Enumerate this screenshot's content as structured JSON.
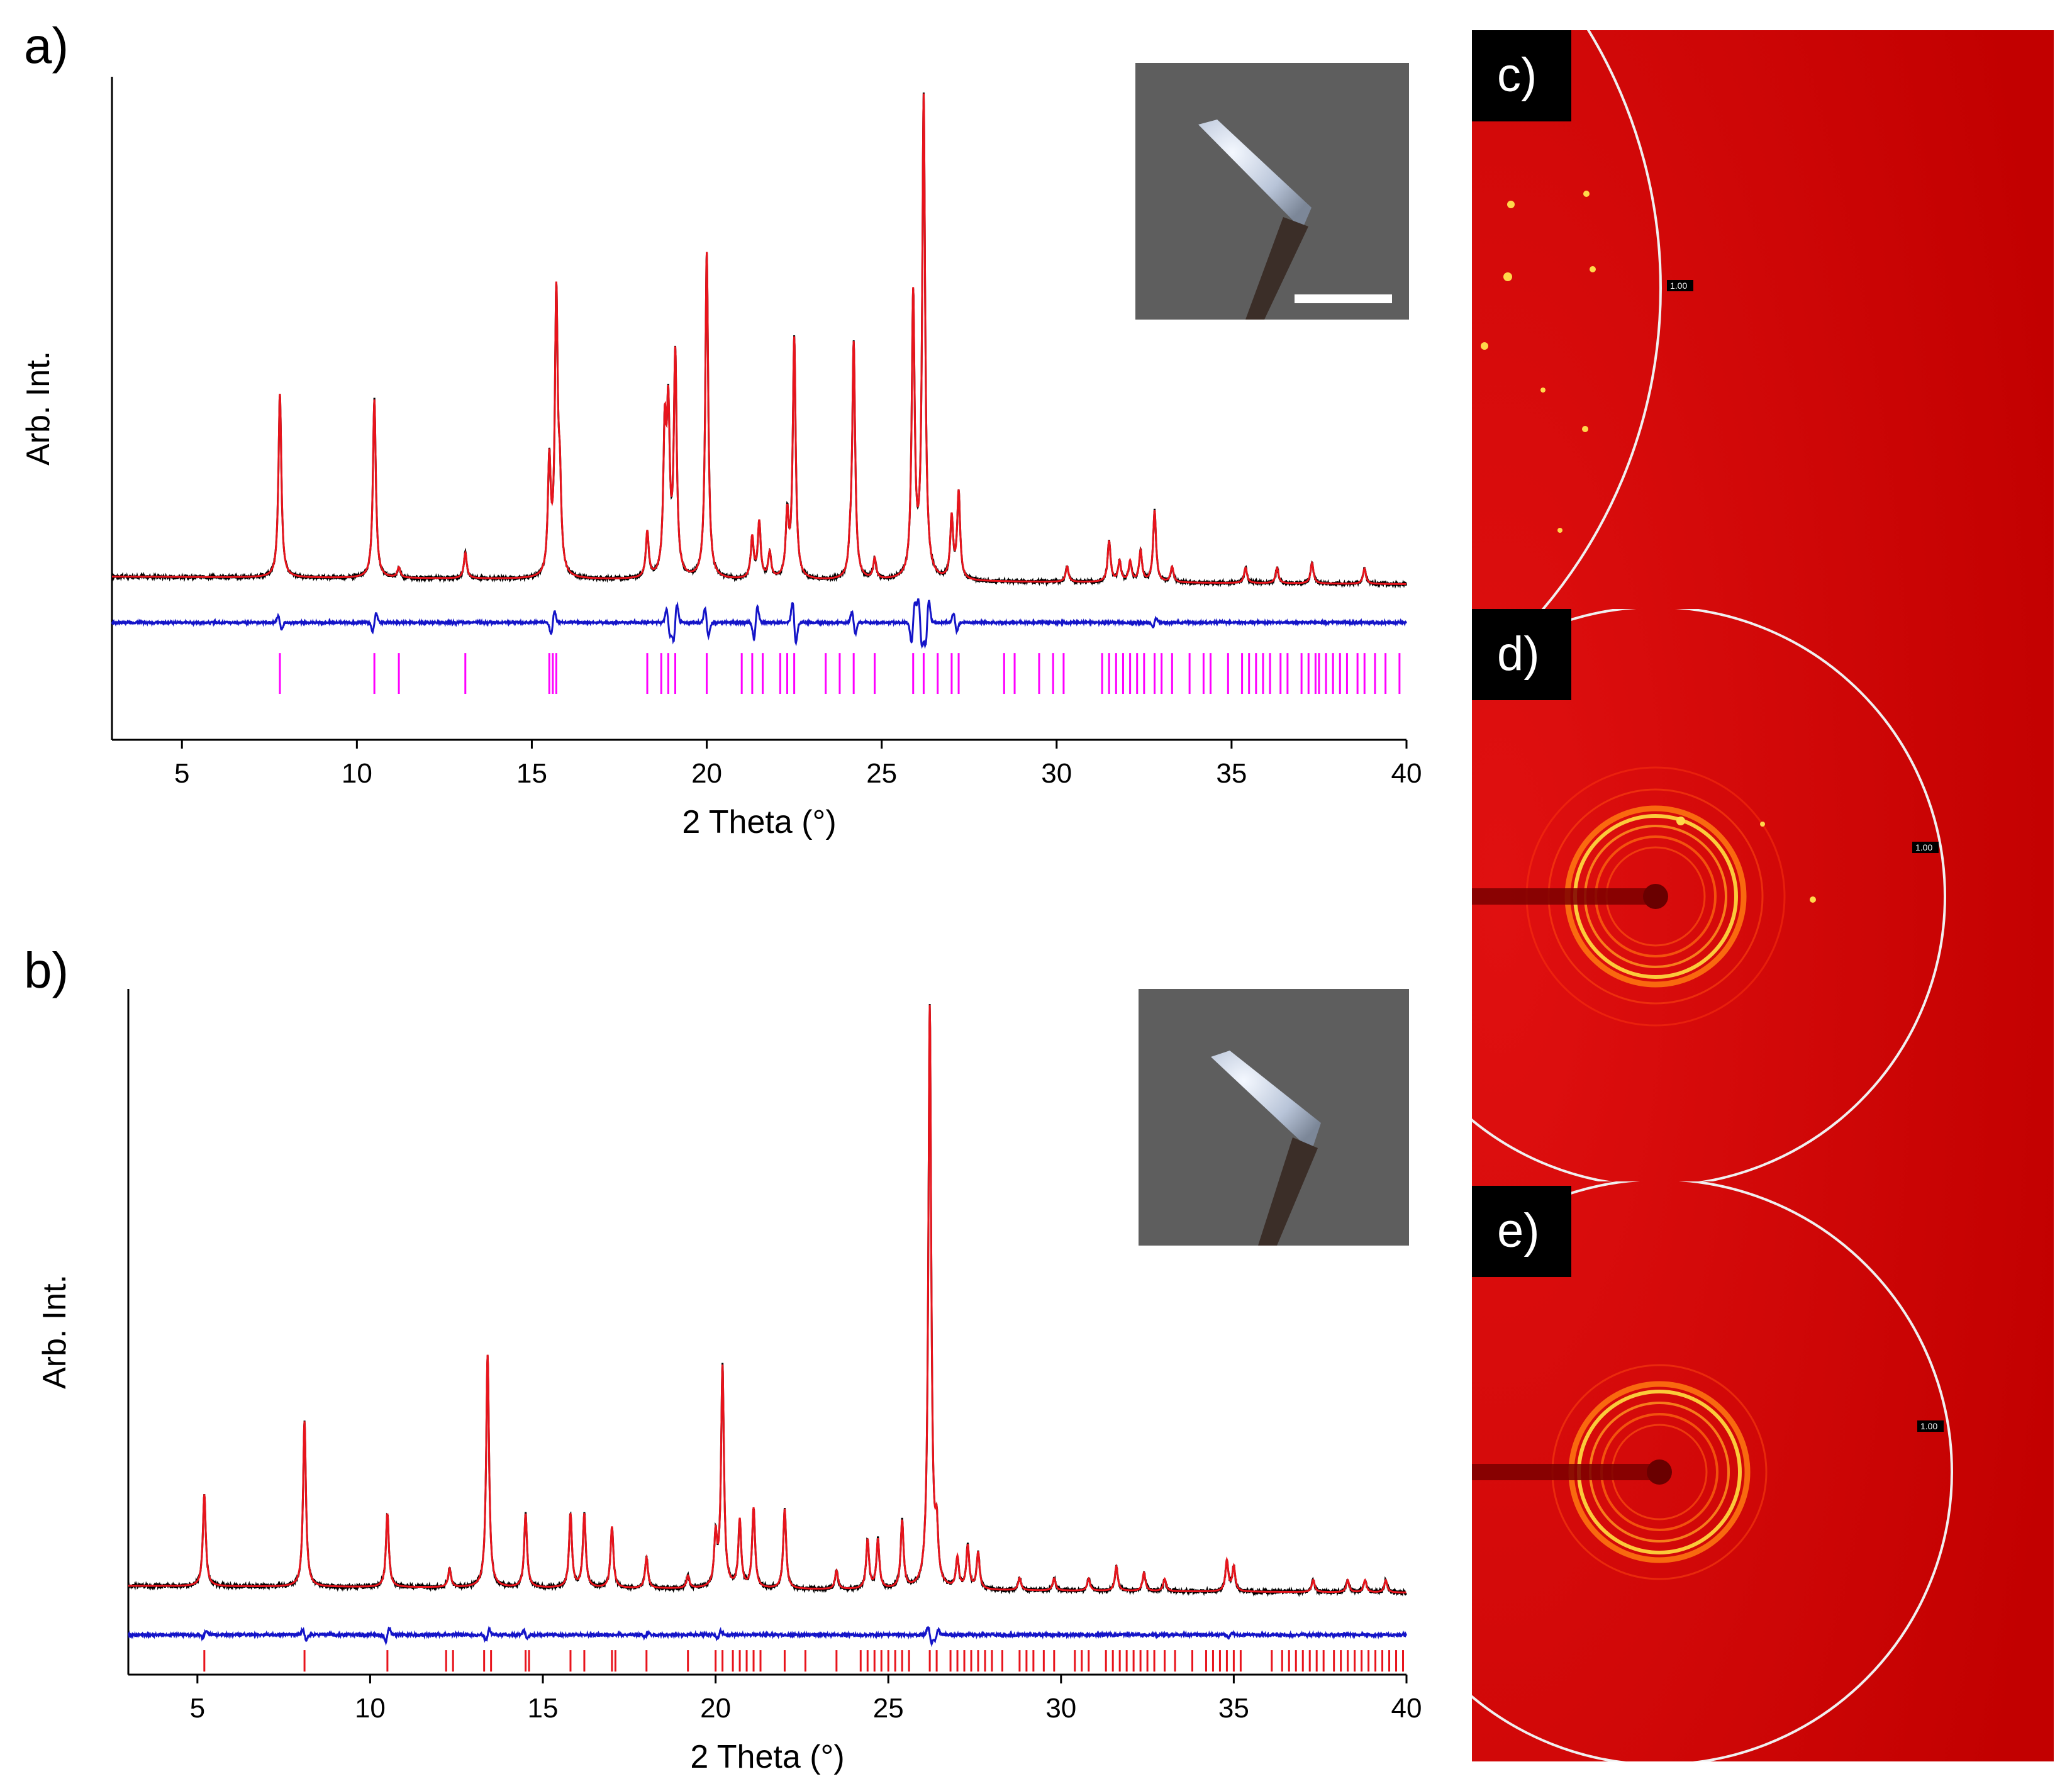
{
  "figure": {
    "labels": {
      "a": "a)",
      "b": "b)",
      "c": "c)",
      "d": "d)",
      "e": "e)"
    },
    "ring_value": "1.00"
  },
  "colors": {
    "observed": "#000000",
    "calculated": "#e8141c",
    "difference": "#1414c8",
    "ticks_a": "#ff00ff",
    "ticks_b": "#e8141c",
    "detector_bg": "#cc0000",
    "photo_bg": "#5e5e5e"
  },
  "chart_data": [
    {
      "panel": "a",
      "type": "line",
      "xlabel": "2 Theta (°)",
      "ylabel": "Arb. Int.",
      "xlim": [
        3,
        40
      ],
      "xticks": [
        5,
        10,
        15,
        20,
        25,
        30,
        35,
        40
      ],
      "ylim": [
        -30,
        100
      ],
      "baseline": 2,
      "background_slope": -0.04,
      "peaks": [
        {
          "x": 7.8,
          "h": 36
        },
        {
          "x": 10.5,
          "h": 35
        },
        {
          "x": 11.2,
          "h": 2
        },
        {
          "x": 13.1,
          "h": 5
        },
        {
          "x": 15.5,
          "h": 22
        },
        {
          "x": 15.7,
          "h": 54
        },
        {
          "x": 15.8,
          "h": 15
        },
        {
          "x": 18.3,
          "h": 9
        },
        {
          "x": 18.8,
          "h": 27
        },
        {
          "x": 18.9,
          "h": 30
        },
        {
          "x": 19.1,
          "h": 43
        },
        {
          "x": 20.0,
          "h": 64
        },
        {
          "x": 21.3,
          "h": 8
        },
        {
          "x": 21.5,
          "h": 11
        },
        {
          "x": 21.8,
          "h": 5
        },
        {
          "x": 22.3,
          "h": 12
        },
        {
          "x": 22.5,
          "h": 47
        },
        {
          "x": 24.1,
          "h": 4
        },
        {
          "x": 24.2,
          "h": 46
        },
        {
          "x": 24.8,
          "h": 4
        },
        {
          "x": 25.9,
          "h": 55
        },
        {
          "x": 26.2,
          "h": 94
        },
        {
          "x": 27.0,
          "h": 12
        },
        {
          "x": 27.2,
          "h": 17
        },
        {
          "x": 30.3,
          "h": 3
        },
        {
          "x": 31.5,
          "h": 8
        },
        {
          "x": 31.8,
          "h": 4
        },
        {
          "x": 32.1,
          "h": 4
        },
        {
          "x": 32.4,
          "h": 6
        },
        {
          "x": 32.8,
          "h": 14
        },
        {
          "x": 33.3,
          "h": 3
        },
        {
          "x": 35.4,
          "h": 3
        },
        {
          "x": 36.3,
          "h": 3
        },
        {
          "x": 37.3,
          "h": 4
        },
        {
          "x": 38.8,
          "h": 3
        }
      ],
      "difference": [
        {
          "x": 7.8,
          "a": -3
        },
        {
          "x": 10.5,
          "a": 4
        },
        {
          "x": 15.6,
          "a": 5
        },
        {
          "x": 18.9,
          "a": -6
        },
        {
          "x": 19.1,
          "a": 8
        },
        {
          "x": 20.0,
          "a": -6
        },
        {
          "x": 21.4,
          "a": 7
        },
        {
          "x": 22.5,
          "a": -9
        },
        {
          "x": 24.2,
          "a": -5
        },
        {
          "x": 25.9,
          "a": 9
        },
        {
          "x": 26.1,
          "a": -10
        },
        {
          "x": 26.3,
          "a": 10
        },
        {
          "x": 27.1,
          "a": -4
        },
        {
          "x": 32.8,
          "a": 2
        }
      ],
      "reflections": [
        7.8,
        10.5,
        11.2,
        13.1,
        15.5,
        15.6,
        15.7,
        18.3,
        18.7,
        18.9,
        19.1,
        20.0,
        21.0,
        21.3,
        21.6,
        22.1,
        22.3,
        22.5,
        23.4,
        23.8,
        24.2,
        24.8,
        25.9,
        26.2,
        26.6,
        27.0,
        27.2,
        28.5,
        28.8,
        29.5,
        29.9,
        30.2,
        31.3,
        31.5,
        31.7,
        31.9,
        32.1,
        32.3,
        32.5,
        32.8,
        33.0,
        33.3,
        33.8,
        34.2,
        34.4,
        34.9,
        35.3,
        35.5,
        35.7,
        35.9,
        36.1,
        36.4,
        36.6,
        37.0,
        37.2,
        37.4,
        37.5,
        37.7,
        37.9,
        38.1,
        38.3,
        38.6,
        38.8,
        39.1,
        39.4,
        39.8
      ]
    },
    {
      "panel": "b",
      "type": "line",
      "xlabel": "2 Theta (°)",
      "ylabel": "Arb. Int.",
      "xlim": [
        3,
        40
      ],
      "xticks": [
        5,
        10,
        15,
        20,
        25,
        30,
        35,
        40
      ],
      "ylim": [
        -12,
        100
      ],
      "baseline": 2.5,
      "background_slope": -0.03,
      "peaks": [
        {
          "x": 5.2,
          "h": 15
        },
        {
          "x": 8.1,
          "h": 27
        },
        {
          "x": 10.5,
          "h": 12
        },
        {
          "x": 12.3,
          "h": 3
        },
        {
          "x": 13.4,
          "h": 38
        },
        {
          "x": 14.5,
          "h": 12
        },
        {
          "x": 15.8,
          "h": 12
        },
        {
          "x": 16.2,
          "h": 12
        },
        {
          "x": 17.0,
          "h": 10
        },
        {
          "x": 18.0,
          "h": 5
        },
        {
          "x": 19.2,
          "h": 2
        },
        {
          "x": 20.0,
          "h": 8
        },
        {
          "x": 20.2,
          "h": 36
        },
        {
          "x": 20.7,
          "h": 11
        },
        {
          "x": 21.1,
          "h": 13
        },
        {
          "x": 22.0,
          "h": 13
        },
        {
          "x": 23.5,
          "h": 3
        },
        {
          "x": 24.4,
          "h": 8
        },
        {
          "x": 24.7,
          "h": 8
        },
        {
          "x": 25.4,
          "h": 11
        },
        {
          "x": 26.2,
          "h": 95
        },
        {
          "x": 26.4,
          "h": 8
        },
        {
          "x": 27.0,
          "h": 5
        },
        {
          "x": 27.3,
          "h": 7
        },
        {
          "x": 27.6,
          "h": 6
        },
        {
          "x": 28.8,
          "h": 2
        },
        {
          "x": 29.8,
          "h": 2
        },
        {
          "x": 30.8,
          "h": 2
        },
        {
          "x": 31.6,
          "h": 4
        },
        {
          "x": 32.4,
          "h": 3
        },
        {
          "x": 33.0,
          "h": 2
        },
        {
          "x": 34.8,
          "h": 5
        },
        {
          "x": 35.0,
          "h": 4
        },
        {
          "x": 37.3,
          "h": 2
        },
        {
          "x": 38.3,
          "h": 2
        },
        {
          "x": 38.8,
          "h": 2
        },
        {
          "x": 39.4,
          "h": 2
        }
      ],
      "difference": [
        {
          "x": 5.2,
          "a": 1.2
        },
        {
          "x": 8.1,
          "a": -2
        },
        {
          "x": 10.5,
          "a": 2.5
        },
        {
          "x": 13.4,
          "a": 2
        },
        {
          "x": 14.5,
          "a": -1.5
        },
        {
          "x": 18.0,
          "a": 0.8
        },
        {
          "x": 20.1,
          "a": 1.5
        },
        {
          "x": 26.2,
          "a": -3
        },
        {
          "x": 26.4,
          "a": 2
        },
        {
          "x": 34.9,
          "a": 0.8
        }
      ],
      "reflections": [
        5.2,
        8.1,
        10.5,
        12.2,
        12.4,
        13.3,
        13.5,
        14.5,
        14.6,
        15.8,
        16.2,
        17.0,
        17.1,
        18.0,
        19.2,
        20.0,
        20.2,
        20.5,
        20.7,
        20.9,
        21.1,
        21.3,
        22.0,
        22.6,
        23.5,
        24.2,
        24.4,
        24.6,
        24.8,
        25.0,
        25.2,
        25.4,
        25.6,
        26.2,
        26.4,
        26.8,
        27.0,
        27.2,
        27.4,
        27.6,
        27.8,
        28.0,
        28.3,
        28.8,
        29.0,
        29.2,
        29.5,
        29.8,
        30.4,
        30.6,
        30.8,
        31.3,
        31.5,
        31.7,
        31.9,
        32.1,
        32.3,
        32.5,
        32.7,
        33.0,
        33.3,
        33.8,
        34.2,
        34.4,
        34.6,
        34.8,
        35.0,
        35.2,
        36.1,
        36.4,
        36.6,
        36.8,
        37.0,
        37.2,
        37.4,
        37.6,
        37.9,
        38.1,
        38.3,
        38.5,
        38.7,
        38.9,
        39.1,
        39.3,
        39.5,
        39.7,
        39.9
      ]
    }
  ]
}
